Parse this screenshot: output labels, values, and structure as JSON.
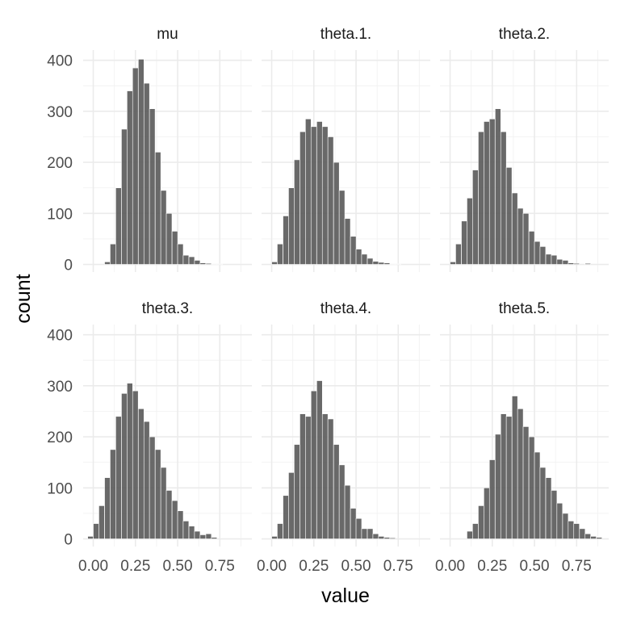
{
  "chart_data": {
    "type": "bar",
    "xlabel": "value",
    "ylabel": "count",
    "xlim": [
      -0.06,
      0.94
    ],
    "ylim": [
      -15,
      420
    ],
    "x_ticks": [
      0.0,
      0.25,
      0.5,
      0.75
    ],
    "x_tick_labels": [
      "0.00",
      "0.25",
      "0.50",
      "0.75"
    ],
    "y_ticks": [
      0,
      100,
      200,
      300,
      400
    ],
    "y_tick_labels": [
      "0",
      "100",
      "200",
      "300",
      "400"
    ],
    "grid": true,
    "bin_width": 0.0333,
    "panels": [
      {
        "title": "mu",
        "bin_starts": [
          0.067,
          0.1,
          0.133,
          0.167,
          0.2,
          0.233,
          0.267,
          0.3,
          0.333,
          0.367,
          0.4,
          0.433,
          0.467,
          0.5,
          0.533,
          0.567,
          0.6,
          0.633,
          0.667,
          0.7,
          0.733
        ],
        "counts": [
          5,
          40,
          150,
          265,
          340,
          385,
          402,
          355,
          305,
          220,
          145,
          100,
          65,
          40,
          18,
          15,
          8,
          3,
          2,
          1,
          1
        ]
      },
      {
        "title": "theta.1.",
        "bin_starts": [
          0.0,
          0.033,
          0.067,
          0.1,
          0.133,
          0.167,
          0.2,
          0.233,
          0.267,
          0.3,
          0.333,
          0.367,
          0.4,
          0.433,
          0.467,
          0.5,
          0.533,
          0.567,
          0.6,
          0.633,
          0.667,
          0.7,
          0.733
        ],
        "counts": [
          5,
          40,
          95,
          150,
          205,
          260,
          285,
          270,
          280,
          270,
          250,
          200,
          145,
          90,
          55,
          30,
          20,
          12,
          6,
          4,
          3,
          1,
          1
        ]
      },
      {
        "title": "theta.2.",
        "bin_starts": [
          0.0,
          0.033,
          0.067,
          0.1,
          0.133,
          0.167,
          0.2,
          0.233,
          0.267,
          0.3,
          0.333,
          0.367,
          0.4,
          0.433,
          0.467,
          0.5,
          0.533,
          0.567,
          0.6,
          0.633,
          0.667,
          0.7,
          0.733,
          0.767,
          0.8
        ],
        "counts": [
          5,
          40,
          85,
          130,
          185,
          260,
          280,
          285,
          305,
          260,
          190,
          140,
          110,
          100,
          65,
          45,
          35,
          20,
          18,
          10,
          8,
          3,
          2,
          0,
          2
        ]
      },
      {
        "title": "theta.3.",
        "bin_starts": [
          -0.033,
          0.0,
          0.033,
          0.067,
          0.1,
          0.133,
          0.167,
          0.2,
          0.233,
          0.267,
          0.3,
          0.333,
          0.367,
          0.4,
          0.433,
          0.467,
          0.5,
          0.533,
          0.567,
          0.6,
          0.633,
          0.667,
          0.7
        ],
        "counts": [
          5,
          30,
          65,
          120,
          175,
          240,
          285,
          305,
          290,
          255,
          230,
          200,
          175,
          140,
          95,
          75,
          55,
          35,
          25,
          15,
          8,
          10,
          3
        ]
      },
      {
        "title": "theta.4.",
        "bin_starts": [
          0.0,
          0.033,
          0.067,
          0.1,
          0.133,
          0.167,
          0.2,
          0.233,
          0.267,
          0.3,
          0.333,
          0.367,
          0.4,
          0.433,
          0.467,
          0.5,
          0.533,
          0.567,
          0.6,
          0.633,
          0.667,
          0.7
        ],
        "counts": [
          5,
          30,
          85,
          130,
          185,
          245,
          240,
          290,
          310,
          245,
          235,
          185,
          145,
          105,
          60,
          40,
          20,
          20,
          10,
          5,
          3,
          2
        ]
      },
      {
        "title": "theta.5.",
        "bin_starts": [
          0.1,
          0.133,
          0.167,
          0.2,
          0.233,
          0.267,
          0.3,
          0.333,
          0.367,
          0.4,
          0.433,
          0.467,
          0.5,
          0.533,
          0.567,
          0.6,
          0.633,
          0.667,
          0.7,
          0.733,
          0.767,
          0.8,
          0.833,
          0.867
        ],
        "counts": [
          15,
          30,
          65,
          100,
          155,
          205,
          245,
          240,
          280,
          255,
          220,
          200,
          170,
          140,
          120,
          95,
          70,
          50,
          35,
          30,
          20,
          10,
          5,
          3
        ]
      }
    ]
  }
}
